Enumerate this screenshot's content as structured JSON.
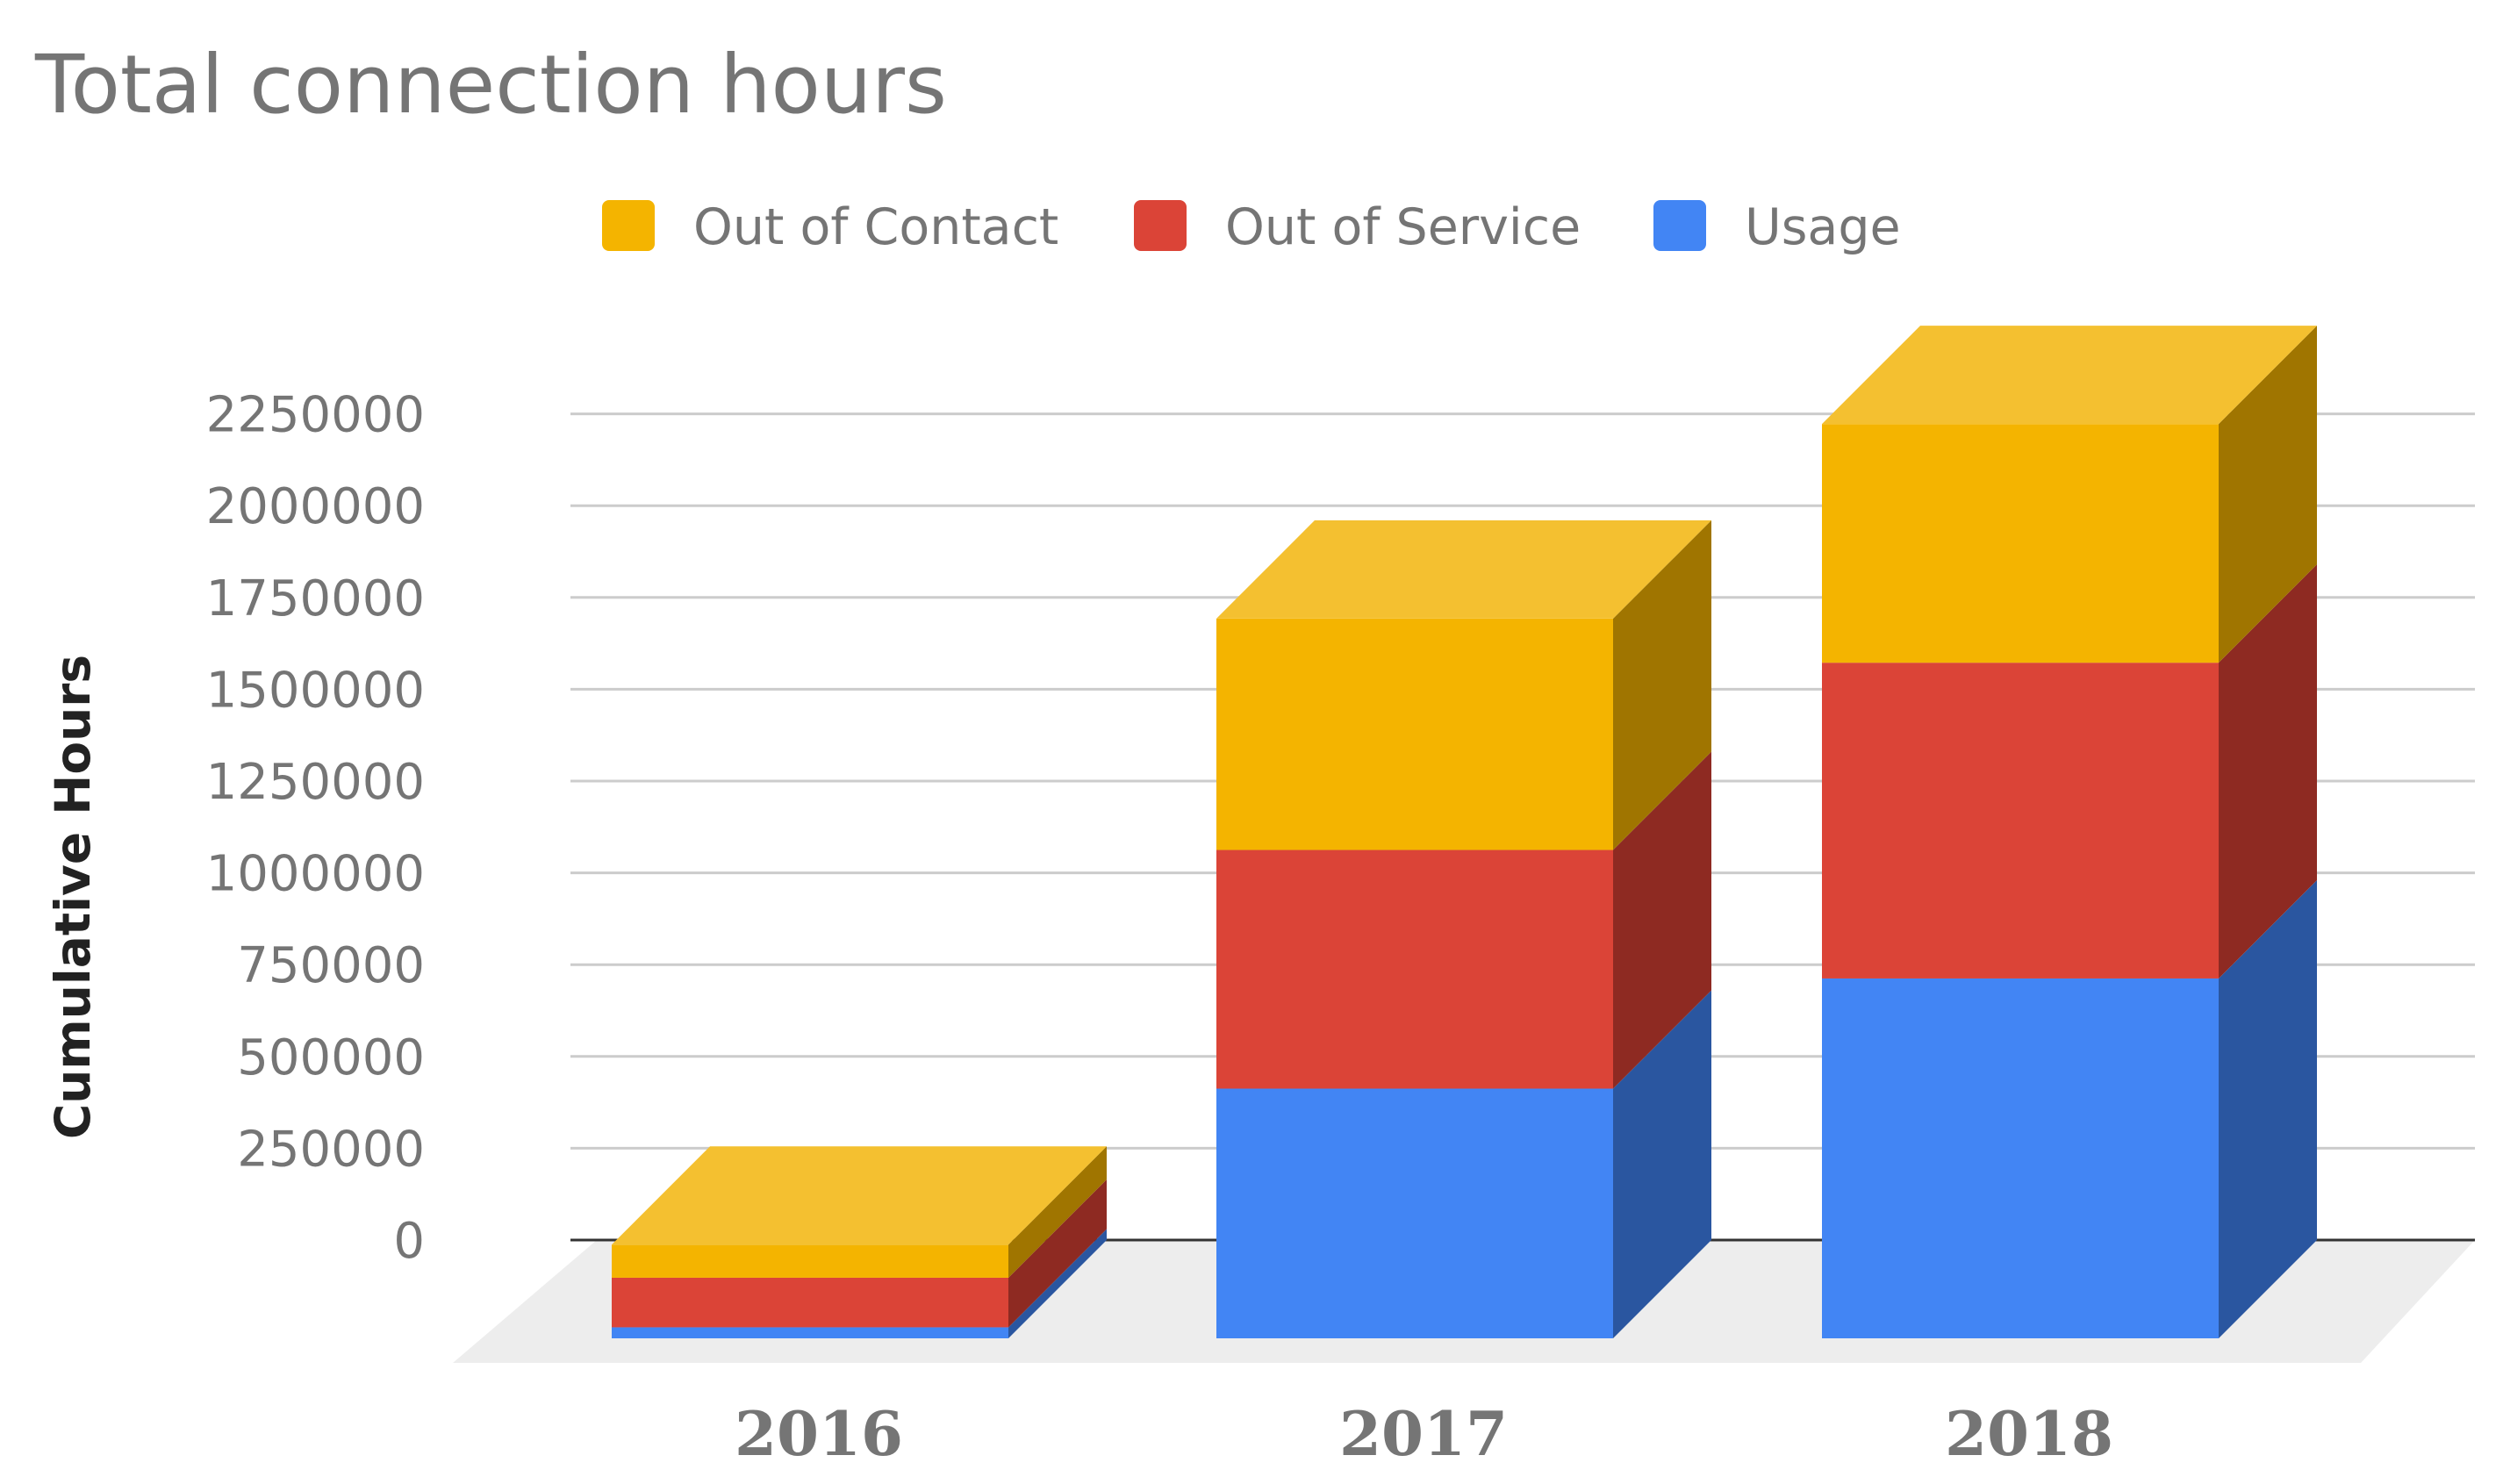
{
  "chart_data": {
    "type": "bar",
    "stacked": true,
    "three_d": true,
    "title": "Total connection hours",
    "xlabel": "",
    "ylabel": "Cumulative Hours",
    "categories": [
      "2016",
      "2017",
      "2018"
    ],
    "series": [
      {
        "name": "Usage",
        "values": [
          30000,
          680000,
          980000
        ]
      },
      {
        "name": "Out of Service",
        "values": [
          135000,
          650000,
          860000
        ]
      },
      {
        "name": "Out of Contact",
        "values": [
          90000,
          630000,
          650000
        ]
      }
    ],
    "legend_order": [
      "Out of Contact",
      "Out of Service",
      "Usage"
    ],
    "legend_position": "top",
    "yticks": [
      0,
      250000,
      500000,
      750000,
      1000000,
      1250000,
      1500000,
      1750000,
      2000000,
      2250000
    ],
    "ylim": [
      -250000,
      2400000
    ],
    "grid": true,
    "colors": {
      "Usage": {
        "front": "#4285f4",
        "side": "#2a56a0",
        "top": "#5b9bff"
      },
      "Out of Service": {
        "front": "#db4437",
        "side": "#8e2a22",
        "top": "#e8675b"
      },
      "Out of Contact": {
        "front": "#f4b400",
        "side": "#a07500",
        "top": "#f4c030"
      },
      "gridline": "#cccccc",
      "baseline": "#333333",
      "floor": "#ededed"
    }
  }
}
